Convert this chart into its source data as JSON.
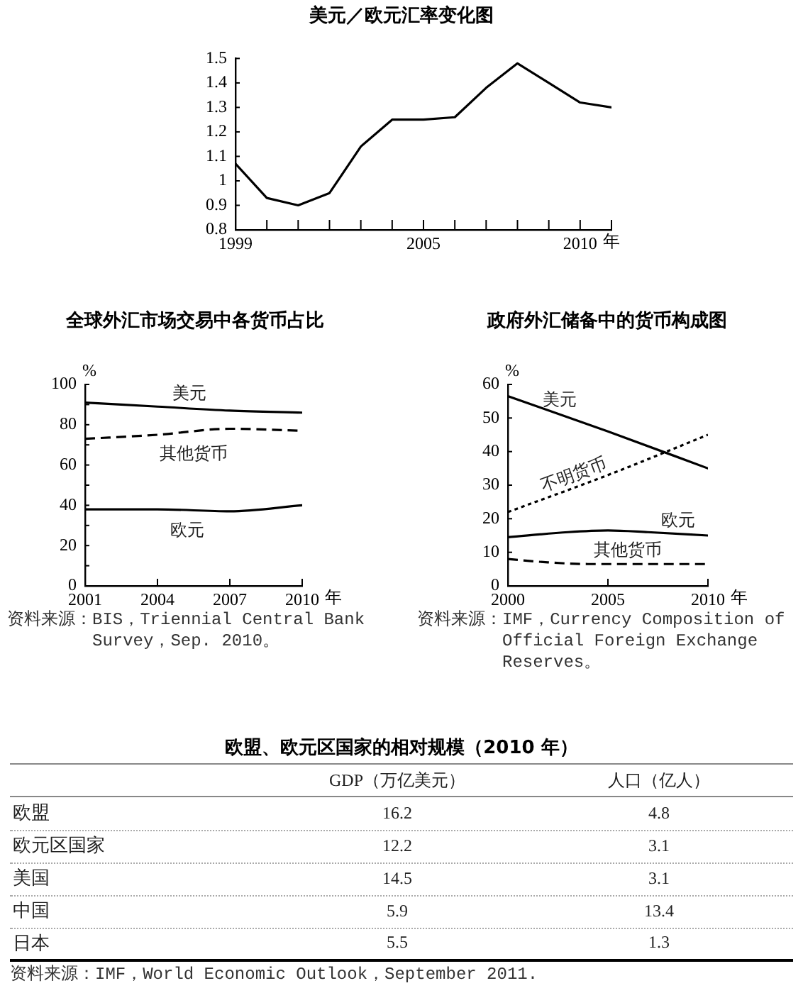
{
  "chart_data": [
    {
      "type": "line",
      "title": "美元／欧元汇率变化图",
      "x": [
        1999,
        2000,
        2001,
        2002,
        2003,
        2004,
        2005,
        2006,
        2007,
        2008,
        2009,
        2010,
        2011
      ],
      "values": [
        1.07,
        0.93,
        0.9,
        0.95,
        1.14,
        1.25,
        1.25,
        1.26,
        1.38,
        1.48,
        1.4,
        1.32,
        1.3
      ],
      "color": "#000000",
      "xlim": [
        1999,
        2011
      ],
      "xticks": [
        1999,
        {
          "value": 2000,
          "label": null
        },
        {
          "value": 2001,
          "label": null
        },
        {
          "value": 2002,
          "label": null
        },
        {
          "value": 2003,
          "label": null
        },
        {
          "value": 2004,
          "label": null
        },
        2005,
        {
          "value": 2006,
          "label": null
        },
        {
          "value": 2007,
          "label": null
        },
        {
          "value": 2008,
          "label": null
        },
        {
          "value": 2009,
          "label": null
        },
        2010,
        {
          "value": 2011,
          "label": null
        }
      ],
      "xlabel": "年",
      "ylim": [
        0.8,
        1.5
      ],
      "yticks": [
        0.8,
        0.9,
        1,
        1.1,
        1.2,
        1.3,
        1.4,
        1.5
      ]
    },
    {
      "type": "line",
      "title": "全球外汇市场交易中各货币占比",
      "x": [
        2001,
        2004,
        2007,
        2010
      ],
      "series": [
        {
          "name": "美元",
          "color": "#000000",
          "values": [
            91,
            89,
            87,
            86
          ]
        },
        {
          "name": "其他货币",
          "color": "#000000",
          "values": [
            73,
            75,
            78,
            77
          ],
          "line_style": "dashed"
        },
        {
          "name": "欧元",
          "color": "#000000",
          "values": [
            38,
            38,
            37,
            40
          ]
        }
      ],
      "xlim": [
        2001,
        2010
      ],
      "xticks": [
        2001,
        2004,
        2007,
        2010
      ],
      "xlabel": "年",
      "ylabel": "%",
      "ylim": [
        0,
        100
      ],
      "yticks": [
        0,
        {
          "value": 10,
          "label": null
        },
        20,
        {
          "value": 30,
          "label": null
        },
        40,
        {
          "value": 50,
          "label": null
        },
        60,
        {
          "value": 70,
          "label": null
        },
        80,
        {
          "value": 90,
          "label": null
        },
        100
      ],
      "annotations": [
        "资料来源：BIS，Triennial Central Bank Survey，Sep. 2010。"
      ]
    },
    {
      "type": "line",
      "title": "政府外汇储备中的货币构成图",
      "series": [
        {
          "name": "美元",
          "color": "#000000",
          "x": [
            2000,
            2005,
            2010
          ],
          "values": [
            56.5,
            46,
            35
          ]
        },
        {
          "name": "不明货币",
          "color": "#000000",
          "x": [
            2000,
            2005,
            2010
          ],
          "values": [
            22,
            33,
            45
          ],
          "line_style": "dotted"
        },
        {
          "name": "欧元",
          "color": "#000000",
          "x": [
            2000,
            2003,
            2005,
            2007,
            2010
          ],
          "values": [
            14.5,
            16,
            16.5,
            16,
            15
          ]
        },
        {
          "name": "其他货币",
          "color": "#000000",
          "x": [
            2000,
            2002,
            2004,
            2010
          ],
          "values": [
            8,
            7,
            6.5,
            6.5
          ],
          "line_style": "dashed"
        }
      ],
      "xlim": [
        2000,
        2010
      ],
      "xticks": [
        2000,
        2005,
        2010
      ],
      "xlabel": "年",
      "ylabel": "%",
      "ylim": [
        0,
        60
      ],
      "yticks": [
        0,
        10,
        20,
        30,
        40,
        50,
        60
      ],
      "annotations": [
        "资料来源：IMF，Currency Composition of Official Foreign Exchange Reserves。"
      ]
    },
    {
      "type": "heatmap",
      "title": "欧盟、欧元区国家的相对规模（2010 年）",
      "categories": [
        "GDP（万亿美元）",
        "人口（亿人）"
      ],
      "y_categories": [
        "欧盟",
        "欧元区国家",
        "美国",
        "中国",
        "日本"
      ],
      "cells": [
        [
          16.2,
          4.8
        ],
        [
          12.2,
          3.1
        ],
        [
          14.5,
          3.1
        ],
        [
          5.9,
          13.4
        ],
        [
          5.5,
          1.3
        ]
      ],
      "data_labels": true,
      "annotations": [
        "资料来源：IMF，World Economic Outlook，September 2011."
      ]
    }
  ]
}
